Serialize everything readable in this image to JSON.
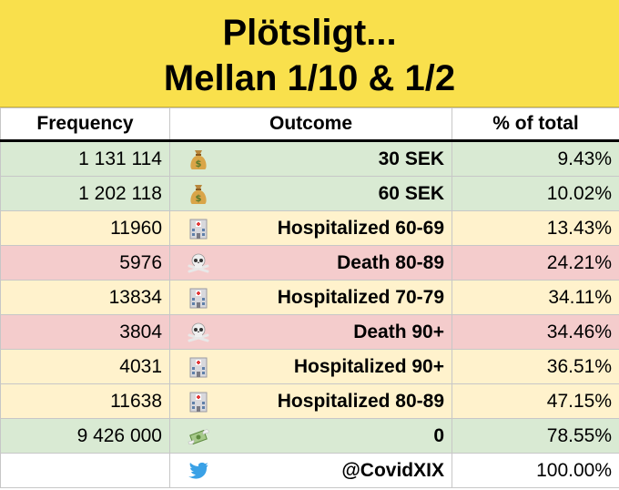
{
  "title": {
    "line1": "Plötsligt...",
    "line2": "Mellan 1/10 & 1/2"
  },
  "headers": {
    "frequency": "Frequency",
    "outcome": "Outcome",
    "percent": "% of total"
  },
  "colors": {
    "title_bg": "#f9e04c",
    "green": "#d9ead3",
    "yellow": "#fff2cc",
    "red": "#f4cccc"
  },
  "rows": [
    {
      "frequency": "1 131 114",
      "icon": "money-bag-icon",
      "outcome": "30 SEK",
      "percent": "9.43%",
      "color": "green"
    },
    {
      "frequency": "1 202 118",
      "icon": "money-bag-icon",
      "outcome": "60 SEK",
      "percent": "10.02%",
      "color": "green"
    },
    {
      "frequency": "11960",
      "icon": "hospital-icon",
      "outcome": "Hospitalized 60-69",
      "percent": "13.43%",
      "color": "yellow"
    },
    {
      "frequency": "5976",
      "icon": "skull-crossbones-icon",
      "outcome": "Death 80-89",
      "percent": "24.21%",
      "color": "red"
    },
    {
      "frequency": "13834",
      "icon": "hospital-icon",
      "outcome": "Hospitalized 70-79",
      "percent": "34.11%",
      "color": "yellow"
    },
    {
      "frequency": "3804",
      "icon": "skull-crossbones-icon",
      "outcome": "Death 90+",
      "percent": "34.46%",
      "color": "red"
    },
    {
      "frequency": "4031",
      "icon": "hospital-icon",
      "outcome": "Hospitalized 90+",
      "percent": "36.51%",
      "color": "yellow"
    },
    {
      "frequency": "11638",
      "icon": "hospital-icon",
      "outcome": "Hospitalized 80-89",
      "percent": "47.15%",
      "color": "yellow"
    },
    {
      "frequency": "9 426 000",
      "icon": "money-with-wings-icon",
      "outcome": "0",
      "percent": "78.55%",
      "color": "green"
    },
    {
      "frequency": "",
      "icon": "twitter-bird-icon",
      "outcome": "@CovidXIX",
      "percent": "100.00%",
      "color": "white"
    }
  ]
}
